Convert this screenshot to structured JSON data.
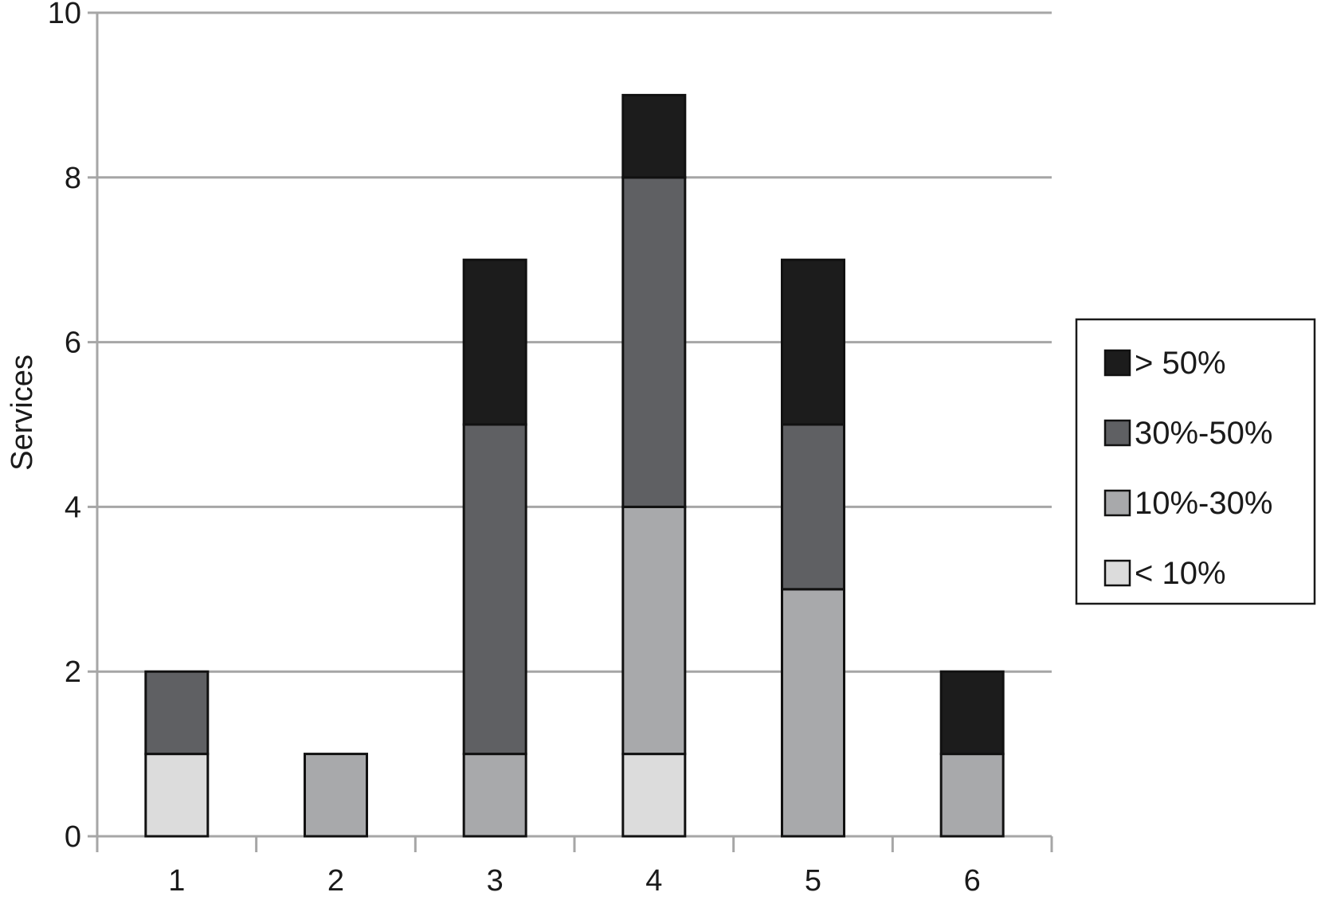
{
  "chart_data": {
    "type": "bar",
    "stacked": true,
    "title": "",
    "xlabel": "",
    "ylabel": "Services",
    "categories": [
      "1",
      "2",
      "3",
      "4",
      "5",
      "6"
    ],
    "ylim": [
      0,
      10
    ],
    "yticks": [
      0,
      2,
      4,
      6,
      8,
      10
    ],
    "grid": true,
    "legend_position": "right",
    "series": [
      {
        "name": "< 10%",
        "color": "#dcdcdc",
        "values": [
          1,
          0,
          0,
          1,
          0,
          0
        ]
      },
      {
        "name": "10%-30%",
        "color": "#a8a9ab",
        "values": [
          0,
          1,
          1,
          3,
          3,
          1
        ]
      },
      {
        "name": "30%-50%",
        "color": "#5f6063",
        "values": [
          1,
          0,
          4,
          4,
          2,
          0
        ]
      },
      {
        "name": "> 50%",
        "color": "#1c1c1c",
        "values": [
          0,
          0,
          2,
          1,
          2,
          1
        ]
      }
    ],
    "legend_order": [
      "> 50%",
      "30%-50%",
      "10%-30%",
      "< 10%"
    ]
  }
}
